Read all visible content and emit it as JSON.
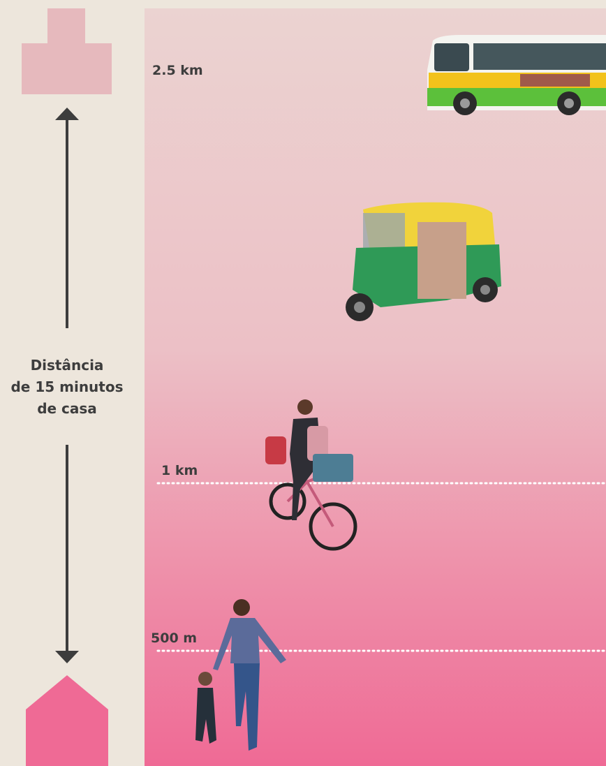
{
  "distance_markers": [
    {
      "label": "2.5 km"
    },
    {
      "label": "1 km"
    },
    {
      "label": "500 m"
    }
  ],
  "caption": [
    "Distância",
    "de 15 minutos",
    "de casa"
  ]
}
